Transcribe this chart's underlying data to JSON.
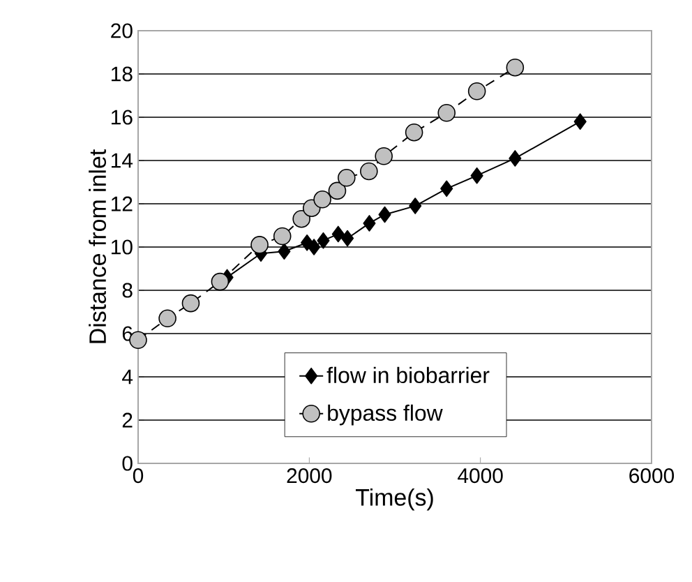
{
  "chart_data": {
    "type": "line",
    "xlabel": "Time(s)",
    "ylabel": "Distance from inlet",
    "xlim": [
      0,
      6000
    ],
    "xticks": [
      0,
      2000,
      4000,
      6000
    ],
    "ylim": [
      0,
      20
    ],
    "yticks": [
      0,
      2,
      4,
      6,
      8,
      10,
      12,
      14,
      16,
      18,
      20
    ],
    "grid": "y",
    "legend": "bottom right",
    "series": [
      {
        "name": "flow in biobarrier",
        "color": "#000000",
        "marker": "diamond",
        "line_style": "solid",
        "x": [
          1040,
          1435,
          1707,
          1974,
          2055,
          2164,
          2338,
          2446,
          2702,
          2882,
          3238,
          3605,
          3959,
          4405,
          5166
        ],
        "values": [
          8.6,
          9.7,
          9.8,
          10.2,
          10.0,
          10.3,
          10.6,
          10.4,
          11.1,
          11.5,
          11.9,
          12.7,
          13.3,
          14.1,
          15.8
        ]
      },
      {
        "name": "bypass flow",
        "color": "#c0c0c0",
        "marker": "circle",
        "line_style": "dashed",
        "x": [
          0,
          343,
          615,
          957,
          1419,
          1685,
          1909,
          2028,
          2153,
          2327,
          2436,
          2697,
          2871,
          3225,
          3605,
          3959,
          4405
        ],
        "values": [
          5.7,
          6.7,
          7.4,
          8.4,
          10.1,
          10.5,
          11.3,
          11.8,
          12.2,
          12.6,
          13.2,
          13.5,
          14.2,
          15.3,
          16.2,
          17.2,
          18.3
        ]
      }
    ]
  }
}
